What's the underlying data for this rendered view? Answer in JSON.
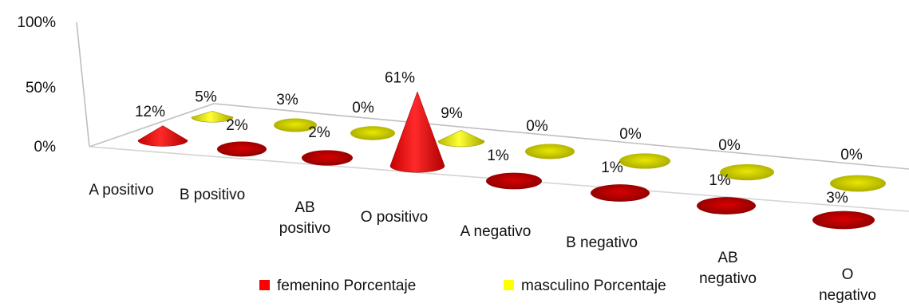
{
  "chart_data": {
    "type": "bar",
    "style": "3d-cone",
    "categories": [
      "A positivo",
      "B positivo",
      "AB positivo",
      "O positivo",
      "A negativo",
      "B negativo",
      "AB negativo",
      "O negativo"
    ],
    "category_lines": [
      [
        "A positivo"
      ],
      [
        "B positivo"
      ],
      [
        "AB",
        "positivo"
      ],
      [
        "O positivo"
      ],
      [
        "A negativo"
      ],
      [
        "B negativo"
      ],
      [
        "AB",
        "negativo"
      ],
      [
        "O",
        "negativo"
      ]
    ],
    "series": [
      {
        "name": "femenino  Porcentaje",
        "color": "#ff0000",
        "values": [
          12,
          2,
          2,
          61,
          1,
          1,
          1,
          3
        ],
        "labels": [
          "12%",
          "2%",
          "2%",
          "61%",
          "1%",
          "1%",
          "1%",
          "3%"
        ]
      },
      {
        "name": "masculino  Porcentaje",
        "color": "#ffff00",
        "values": [
          5,
          3,
          0,
          9,
          0,
          0,
          0,
          0
        ],
        "labels": [
          "5%",
          "3%",
          "0%",
          "9%",
          "0%",
          "0%",
          "0%",
          "0%"
        ]
      }
    ],
    "y_ticks": [
      "0%",
      "50%",
      "100%"
    ],
    "ylim": [
      0,
      100
    ],
    "legend_position": "bottom",
    "grid": false
  }
}
